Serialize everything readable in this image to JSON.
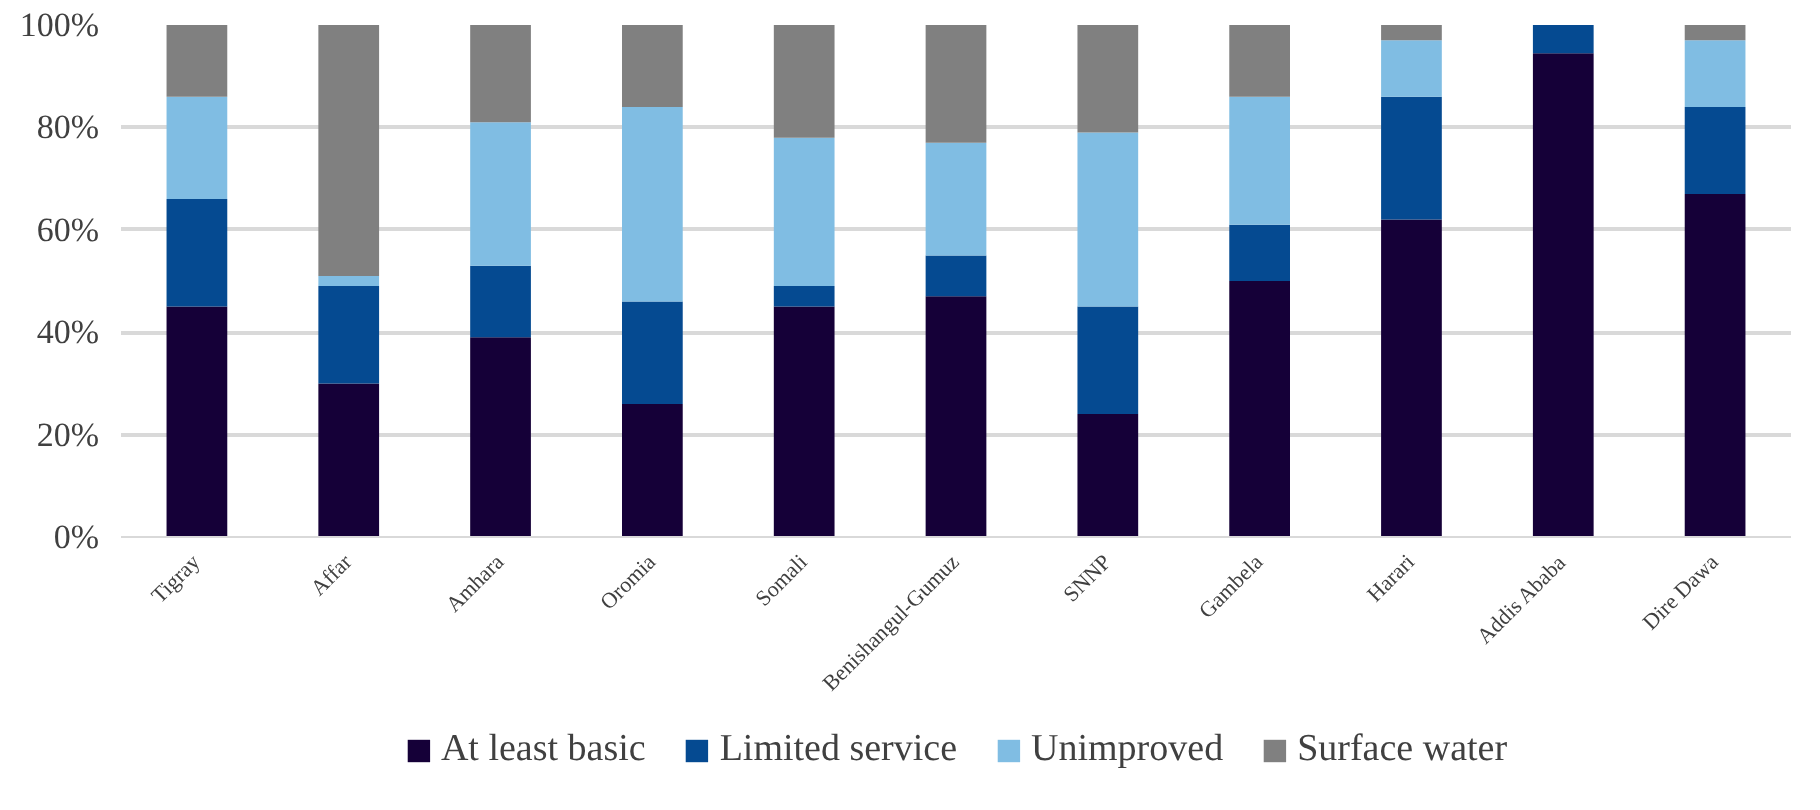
{
  "chart_data": {
    "type": "bar",
    "stacked": true,
    "categories": [
      "Tigray",
      "Affar",
      "Amhara",
      "Oromia",
      "Somali",
      "Benishangul-Gumuz",
      "SNNP",
      "Gambela",
      "Harari",
      "Addis Ababa",
      "Dire Dawa"
    ],
    "series": [
      {
        "name": "At least basic",
        "color": "#150038",
        "values": [
          45,
          30,
          39,
          26,
          45,
          47,
          24,
          50,
          62,
          94.5,
          67
        ]
      },
      {
        "name": "Limited service",
        "color": "#054a91",
        "values": [
          21,
          19,
          14,
          20,
          4,
          8,
          21,
          11,
          24,
          5.5,
          17
        ]
      },
      {
        "name": "Unimproved",
        "color": "#80bde3",
        "values": [
          20,
          2,
          28,
          38,
          29,
          22,
          34,
          25,
          11,
          0,
          13
        ]
      },
      {
        "name": "Surface water",
        "color": "#808080",
        "values": [
          14,
          49,
          19,
          16,
          22,
          23,
          21,
          14,
          3,
          0,
          3
        ]
      }
    ],
    "ylim": [
      0,
      100
    ],
    "yticks": [
      {
        "value": 0,
        "label": "0%"
      },
      {
        "value": 20,
        "label": "20%"
      },
      {
        "value": 40,
        "label": "40%"
      },
      {
        "value": 60,
        "label": "60%"
      },
      {
        "value": 80,
        "label": "80%"
      },
      {
        "value": 100,
        "label": "100%"
      }
    ],
    "grid": "y",
    "legend": "bottom"
  }
}
